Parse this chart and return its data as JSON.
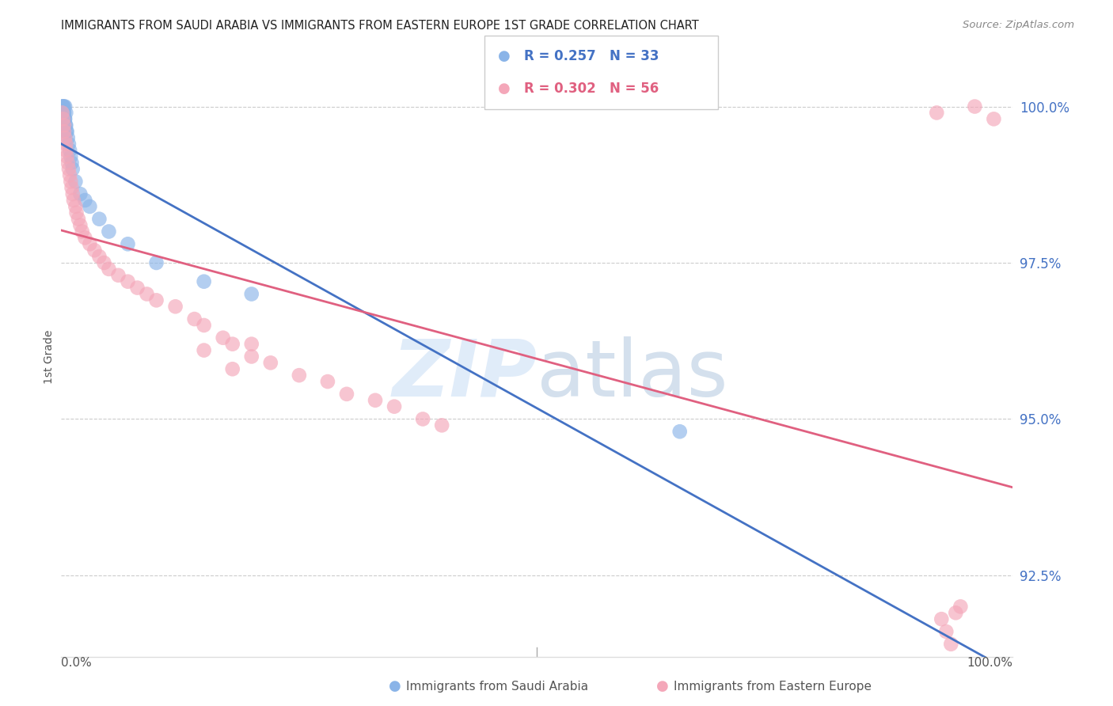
{
  "title": "IMMIGRANTS FROM SAUDI ARABIA VS IMMIGRANTS FROM EASTERN EUROPE 1ST GRADE CORRELATION CHART",
  "source": "Source: ZipAtlas.com",
  "ylabel": "1st Grade",
  "yticks": [
    92.5,
    95.0,
    97.5,
    100.0
  ],
  "ytick_labels": [
    "92.5%",
    "95.0%",
    "97.5%",
    "100.0%"
  ],
  "xlim": [
    0.0,
    100.0
  ],
  "ylim": [
    91.2,
    100.8
  ],
  "blue_color": "#8ab4e8",
  "pink_color": "#f4a7b9",
  "blue_line_color": "#4472c4",
  "pink_line_color": "#e06080",
  "legend_blue_R": "R = 0.257",
  "legend_blue_N": "N = 33",
  "legend_pink_R": "R = 0.302",
  "legend_pink_N": "N = 56",
  "blue_scatter_x": [
    0.1,
    0.2,
    0.2,
    0.3,
    0.3,
    0.3,
    0.4,
    0.4,
    0.5,
    0.5,
    0.6,
    0.7,
    0.8,
    0.9,
    1.0,
    1.1,
    1.2,
    1.5,
    2.0,
    2.5,
    3.0,
    4.0,
    5.0,
    7.0,
    10.0,
    15.0,
    20.0,
    0.15,
    0.25,
    0.35,
    0.45,
    0.55,
    65.0
  ],
  "blue_scatter_y": [
    100.0,
    100.0,
    99.9,
    100.0,
    99.9,
    99.8,
    100.0,
    99.8,
    99.9,
    99.7,
    99.6,
    99.5,
    99.4,
    99.3,
    99.2,
    99.1,
    99.0,
    98.8,
    98.6,
    98.5,
    98.4,
    98.2,
    98.0,
    97.8,
    97.5,
    97.2,
    97.0,
    100.0,
    99.9,
    99.8,
    99.7,
    99.6,
    94.8
  ],
  "pink_scatter_x": [
    0.1,
    0.2,
    0.3,
    0.3,
    0.4,
    0.5,
    0.5,
    0.6,
    0.7,
    0.8,
    0.9,
    1.0,
    1.1,
    1.2,
    1.3,
    1.5,
    1.6,
    1.8,
    2.0,
    2.2,
    2.5,
    3.0,
    3.5,
    4.0,
    4.5,
    5.0,
    6.0,
    7.0,
    8.0,
    9.0,
    10.0,
    12.0,
    14.0,
    15.0,
    17.0,
    18.0,
    20.0,
    22.0,
    25.0,
    28.0,
    30.0,
    33.0,
    35.0,
    38.0,
    40.0,
    15.0,
    18.0,
    20.0,
    92.0,
    96.0,
    98.0,
    92.5,
    93.0,
    93.5,
    94.0,
    94.5
  ],
  "pink_scatter_y": [
    99.9,
    99.8,
    99.7,
    99.6,
    99.5,
    99.4,
    99.3,
    99.2,
    99.1,
    99.0,
    98.9,
    98.8,
    98.7,
    98.6,
    98.5,
    98.4,
    98.3,
    98.2,
    98.1,
    98.0,
    97.9,
    97.8,
    97.7,
    97.6,
    97.5,
    97.4,
    97.3,
    97.2,
    97.1,
    97.0,
    96.9,
    96.8,
    96.6,
    96.5,
    96.3,
    96.2,
    96.0,
    95.9,
    95.7,
    95.6,
    95.4,
    95.3,
    95.2,
    95.0,
    94.9,
    96.1,
    95.8,
    96.2,
    99.9,
    100.0,
    99.8,
    91.8,
    91.6,
    91.4,
    91.9,
    92.0
  ],
  "watermark_zip": "ZIP",
  "watermark_atlas": "atlas",
  "background_color": "#ffffff",
  "grid_color": "#cccccc",
  "right_axis_color": "#4472c4",
  "title_color": "#222222",
  "source_color": "#888888",
  "label_color": "#555555"
}
